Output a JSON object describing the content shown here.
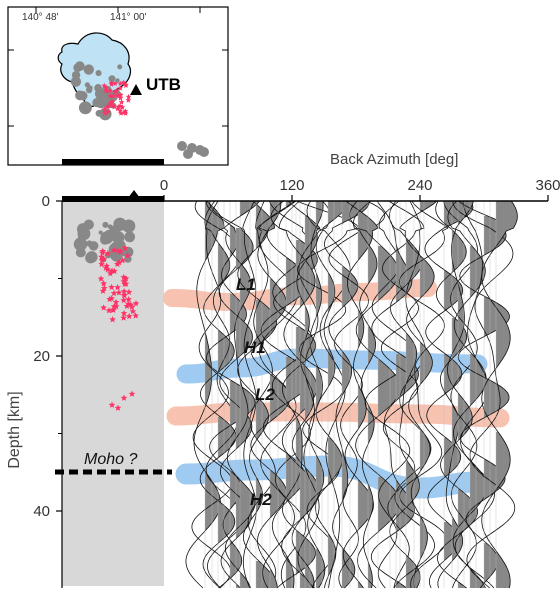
{
  "inset_map": {
    "lon_labels": [
      "140° 48'",
      "141° 00'"
    ],
    "station_label": "UTB"
  },
  "axes": {
    "x_title": "Back Azimuth [deg]",
    "x_ticks": [
      0,
      120,
      240,
      360
    ],
    "y_title": "Depth [km]",
    "y_ticks": [
      0,
      20,
      40
    ]
  },
  "annotations": {
    "moho_label": "Moho ?",
    "layers": [
      {
        "label": "L1",
        "type": "low-velocity"
      },
      {
        "label": "H1",
        "type": "high-velocity"
      },
      {
        "label": "L2",
        "type": "low-velocity"
      },
      {
        "label": "H2",
        "type": "high-velocity"
      }
    ]
  },
  "colors": {
    "low_band": "#f7b7a3",
    "high_band": "#8ec2f0",
    "inset_fill": "#bfe3f5",
    "quake_gray": "#888888",
    "quake_pink": "#ff3366",
    "trace_fill": "#888888"
  }
}
